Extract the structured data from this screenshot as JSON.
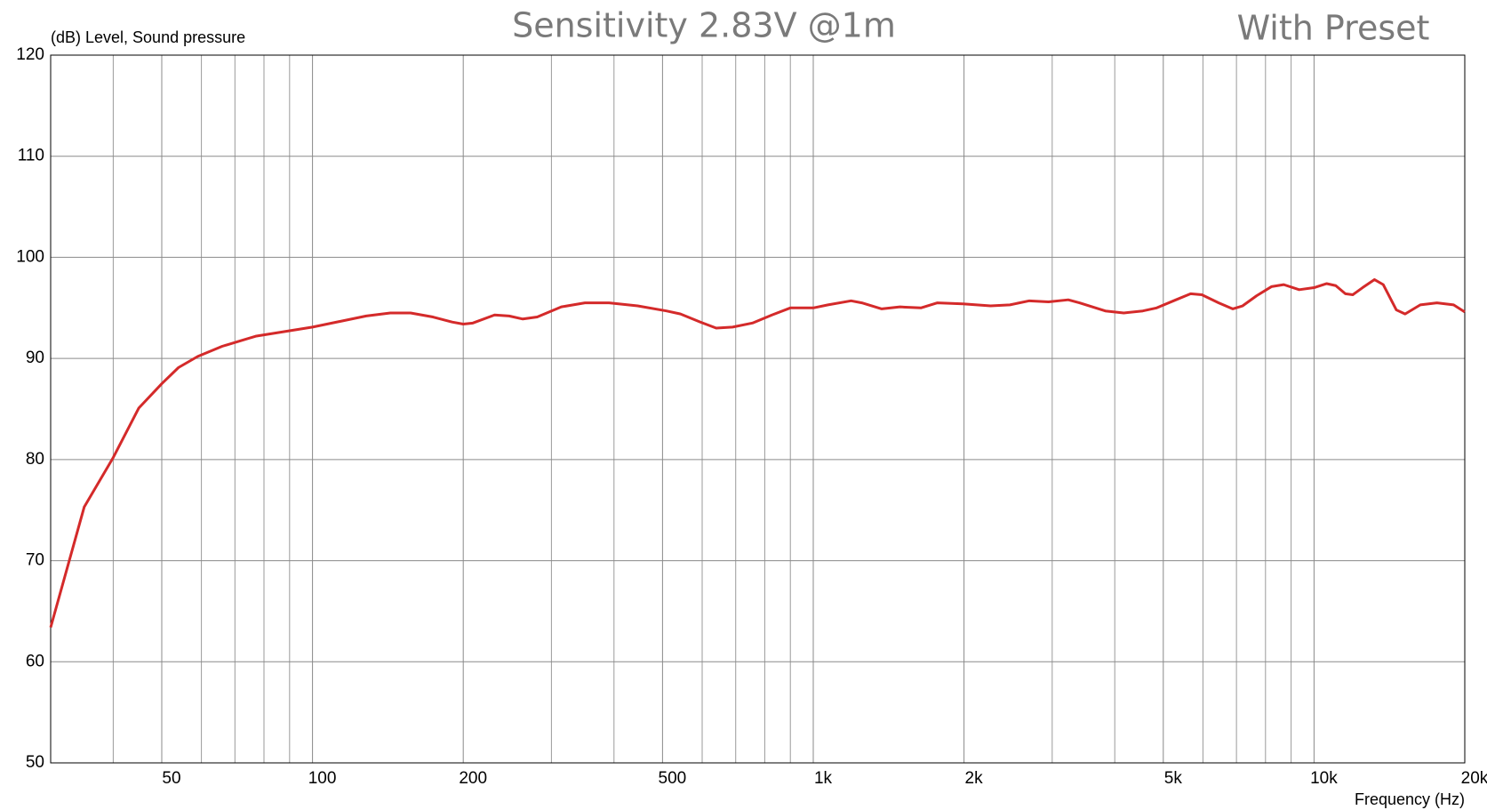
{
  "chart_data": {
    "type": "line",
    "title": "Sensitivity 2.83V @1m",
    "subtitle": "With Preset",
    "y_label": "(dB) Level, Sound pressure",
    "x_label": "Frequency (Hz)",
    "x_log": true,
    "grid": true,
    "xlim": [
      30,
      20000
    ],
    "ylim": [
      50,
      120
    ],
    "xticks": [
      50,
      100,
      200,
      500,
      {
        "value": 1000,
        "label": "1k"
      },
      {
        "value": 2000,
        "label": "2k"
      },
      {
        "value": 5000,
        "label": "5k"
      },
      {
        "value": 10000,
        "label": "10k"
      },
      {
        "value": 20000,
        "label": "20k"
      }
    ],
    "xgrid_minor": [
      40,
      60,
      70,
      80,
      90,
      300,
      400,
      600,
      700,
      800,
      900,
      3000,
      4000,
      6000,
      7000,
      8000,
      9000
    ],
    "yticks": [
      50,
      60,
      70,
      80,
      90,
      100,
      110,
      120
    ],
    "x": [
      30,
      35,
      40,
      45,
      50,
      54,
      59,
      66,
      77,
      100,
      128,
      143,
      157,
      174,
      190,
      200,
      209,
      231,
      247,
      263,
      281,
      314,
      350,
      391,
      446,
      509,
      543,
      595,
      640,
      690,
      756,
      827,
      900,
      1000,
      1070,
      1190,
      1250,
      1370,
      1490,
      1640,
      1770,
      1990,
      2260,
      2470,
      2700,
      2950,
      3230,
      3400,
      3830,
      4170,
      4550,
      4850,
      5300,
      5670,
      5970,
      6450,
      6880,
      7200,
      7680,
      8220,
      8700,
      9340,
      10000,
      10600,
      11050,
      11550,
      11950,
      12500,
      13200,
      13750,
      14600,
      15200,
      16300,
      17600,
      19000,
      20000
    ],
    "series": [
      {
        "name": "Sound pressure",
        "color": "#d42a2a",
        "values": [
          63.4,
          75.3,
          80.2,
          85.1,
          87.5,
          89.1,
          90.2,
          91.2,
          92.2,
          93.1,
          94.2,
          94.5,
          94.5,
          94.1,
          93.6,
          93.4,
          93.5,
          94.3,
          94.2,
          93.9,
          94.1,
          95.1,
          95.5,
          95.5,
          95.2,
          94.7,
          94.4,
          93.6,
          93.0,
          93.1,
          93.5,
          94.3,
          95.0,
          95.0,
          95.3,
          95.7,
          95.5,
          94.9,
          95.1,
          95.0,
          95.5,
          95.4,
          95.2,
          95.3,
          95.7,
          95.6,
          95.8,
          95.5,
          94.7,
          94.5,
          94.7,
          95.0,
          95.8,
          96.4,
          96.3,
          95.5,
          94.9,
          95.2,
          96.2,
          97.1,
          97.3,
          96.8,
          97.0,
          97.4,
          97.2,
          96.4,
          96.3,
          97.0,
          97.8,
          97.3,
          94.8,
          94.4,
          95.3,
          95.5,
          95.3,
          94.6
        ]
      }
    ]
  }
}
